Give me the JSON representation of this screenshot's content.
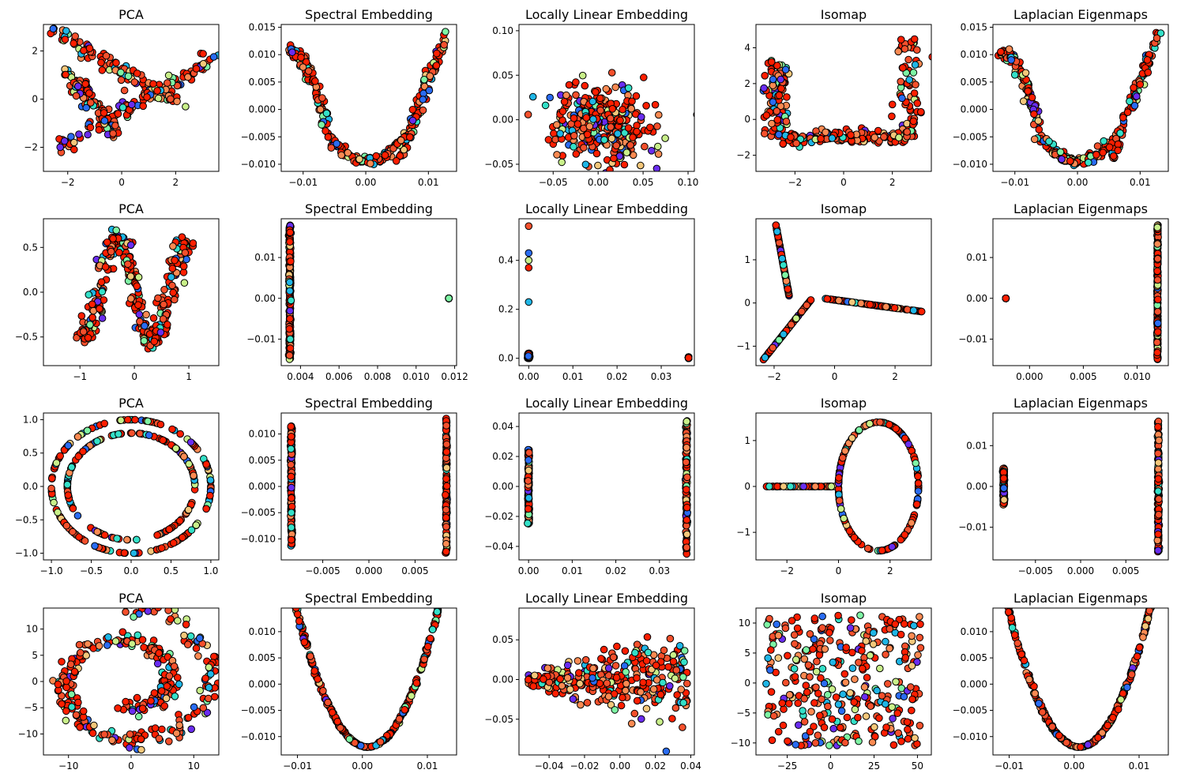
{
  "figure": {
    "rows": 4,
    "cols": 5,
    "colormap": "rainbow",
    "marker_edge": "#000000"
  },
  "palette": [
    "#6a2df0",
    "#2a6cf2",
    "#1fb6e6",
    "#34e0c8",
    "#7ef4a4",
    "#c9f08a",
    "#f4c77a",
    "#fb8a52",
    "#f4502c",
    "#ff1f00"
  ],
  "chart_data": [
    {
      "type": "scatter",
      "title": "PCA",
      "xlim": [
        -2.9,
        3.6
      ],
      "ylim": [
        -3.0,
        3.1
      ],
      "xticks": [
        -2,
        0,
        2
      ],
      "yticks": [
        -2,
        0,
        2
      ],
      "xtick_labels": [
        "−2",
        "0",
        "2"
      ],
      "ytick_labels": [
        "−2",
        "0",
        "2"
      ],
      "shape": "triangle-strands"
    },
    {
      "type": "scatter",
      "title": "Spectral Embedding",
      "xlim": [
        -0.0135,
        0.0145
      ],
      "ylim": [
        -0.0113,
        0.0155
      ],
      "xticks": [
        -0.01,
        0.0,
        0.01
      ],
      "yticks": [
        -0.01,
        -0.005,
        0.0,
        0.005,
        0.01,
        0.015
      ],
      "xtick_labels": [
        "−0.01",
        "0.00",
        "0.01"
      ],
      "ytick_labels": [
        "−0.010",
        "−0.005",
        "0.000",
        "0.005",
        "0.010",
        "0.015"
      ],
      "shape": "u-curve-wide"
    },
    {
      "type": "scatter",
      "title": "Locally Linear Embedding",
      "xlim": [
        -0.088,
        0.107
      ],
      "ylim": [
        -0.058,
        0.107
      ],
      "xticks": [
        -0.05,
        0.0,
        0.05,
        0.1
      ],
      "yticks": [
        -0.05,
        0.0,
        0.05,
        0.1
      ],
      "xtick_labels": [
        "−0.05",
        "0.00",
        "0.05",
        "0.10"
      ],
      "ytick_labels": [
        "−0.05",
        "0.00",
        "0.05",
        "0.10"
      ],
      "shape": "cloud"
    },
    {
      "type": "scatter",
      "title": "Isomap",
      "xlim": [
        -3.6,
        3.6
      ],
      "ylim": [
        -2.9,
        5.3
      ],
      "xticks": [
        -2,
        0,
        2
      ],
      "yticks": [
        -2,
        0,
        2,
        4
      ],
      "xtick_labels": [
        "−2",
        "0",
        "2"
      ],
      "ytick_labels": [
        "−2",
        "0",
        "2",
        "4"
      ],
      "shape": "bracket"
    },
    {
      "type": "scatter",
      "title": "Laplacian Eigenmaps",
      "xlim": [
        -0.0135,
        0.0145
      ],
      "ylim": [
        -0.0113,
        0.0155
      ],
      "xticks": [
        -0.01,
        0.0,
        0.01
      ],
      "yticks": [
        -0.01,
        -0.005,
        0.0,
        0.005,
        0.01,
        0.015
      ],
      "xtick_labels": [
        "−0.01",
        "0.00",
        "0.01"
      ],
      "ytick_labels": [
        "−0.010",
        "−0.005",
        "0.000",
        "0.005",
        "0.010",
        "0.015"
      ],
      "shape": "u-curve-wide"
    },
    {
      "type": "scatter",
      "title": "PCA",
      "xlim": [
        -1.67,
        1.55
      ],
      "ylim": [
        -0.82,
        0.82
      ],
      "xticks": [
        -1,
        0,
        1
      ],
      "yticks": [
        -0.5,
        0.0,
        0.5
      ],
      "xtick_labels": [
        "−1",
        "0",
        "1"
      ],
      "ytick_labels": [
        "−0.5",
        "0.0",
        "0.5"
      ],
      "shape": "s-curve-2d"
    },
    {
      "type": "scatter",
      "title": "Spectral Embedding",
      "xlim": [
        0.003,
        0.0121
      ],
      "ylim": [
        -0.0165,
        0.0195
      ],
      "xticks": [
        0.004,
        0.006,
        0.008,
        0.01,
        0.012
      ],
      "yticks": [
        -0.01,
        0.0,
        0.01
      ],
      "xtick_labels": [
        "0.004",
        "0.006",
        "0.008",
        "0.010",
        "0.012"
      ],
      "ytick_labels": [
        "−0.01",
        "0.00",
        "0.01"
      ],
      "shape": "column-left-dot-right",
      "col_x": 0.00345,
      "dot": [
        0.0117,
        0.0
      ]
    },
    {
      "type": "scatter",
      "title": "Locally Linear Embedding",
      "xlim": [
        -0.0022,
        0.0375
      ],
      "ylim": [
        -0.03,
        0.57
      ],
      "xticks": [
        0.0,
        0.01,
        0.02,
        0.03
      ],
      "yticks": [
        0.0,
        0.2,
        0.4
      ],
      "xtick_labels": [
        "0.00",
        "0.01",
        "0.02",
        "0.03"
      ],
      "ytick_labels": [
        "0.0",
        "0.2",
        "0.4"
      ],
      "shape": "lle-spikes"
    },
    {
      "type": "scatter",
      "title": "Isomap",
      "xlim": [
        -2.6,
        3.2
      ],
      "ylim": [
        -1.45,
        1.95
      ],
      "xticks": [
        -2,
        0,
        2
      ],
      "yticks": [
        -1,
        0,
        1
      ],
      "xtick_labels": [
        "−2",
        "0",
        "2"
      ],
      "ytick_labels": [
        "−1",
        "0",
        "1"
      ],
      "shape": "y-branches"
    },
    {
      "type": "scatter",
      "title": "Laplacian Eigenmaps",
      "xlim": [
        -0.0034,
        0.0129
      ],
      "ylim": [
        -0.0165,
        0.0195
      ],
      "xticks": [
        0.0,
        0.005,
        0.01
      ],
      "yticks": [
        -0.01,
        0.0,
        0.01
      ],
      "xtick_labels": [
        "0.000",
        "0.005",
        "0.010"
      ],
      "ytick_labels": [
        "−0.01",
        "0.00",
        "0.01"
      ],
      "shape": "dot-left-column-right",
      "col_x": 0.0119,
      "dot": [
        -0.0022,
        0.0
      ]
    },
    {
      "type": "scatter",
      "title": "PCA",
      "xlim": [
        -1.1,
        1.1
      ],
      "ylim": [
        -1.1,
        1.1
      ],
      "xticks": [
        -1.0,
        -0.5,
        0.0,
        0.5,
        1.0
      ],
      "yticks": [
        -1.0,
        -0.5,
        0.0,
        0.5,
        1.0
      ],
      "xtick_labels": [
        "−1.0",
        "−0.5",
        "0.0",
        "0.5",
        "1.0"
      ],
      "ytick_labels": [
        "−1.0",
        "−0.5",
        "0.0",
        "0.5",
        "1.0"
      ],
      "shape": "two-circles"
    },
    {
      "type": "scatter",
      "title": "Spectral Embedding",
      "xlim": [
        -0.0095,
        0.0095
      ],
      "ylim": [
        -0.014,
        0.014
      ],
      "xticks": [
        -0.005,
        0.0,
        0.005
      ],
      "yticks": [
        -0.01,
        -0.005,
        0.0,
        0.005,
        0.01
      ],
      "xtick_labels": [
        "−0.005",
        "0.000",
        "0.005"
      ],
      "ytick_labels": [
        "−0.010",
        "−0.005",
        "0.000",
        "0.005",
        "0.010"
      ],
      "shape": "two-columns",
      "col_a": [
        -0.0084,
        -0.0115,
        0.0115
      ],
      "col_b": [
        0.0084,
        -0.0128,
        0.013
      ]
    },
    {
      "type": "scatter",
      "title": "Locally Linear Embedding",
      "xlim": [
        -0.0022,
        0.038
      ],
      "ylim": [
        -0.049,
        0.049
      ],
      "xticks": [
        0.0,
        0.01,
        0.02,
        0.03
      ],
      "yticks": [
        -0.04,
        -0.02,
        0.0,
        0.02,
        0.04
      ],
      "xtick_labels": [
        "0.00",
        "0.01",
        "0.02",
        "0.03"
      ],
      "ytick_labels": [
        "−0.04",
        "−0.02",
        "0.00",
        "0.02",
        "0.04"
      ],
      "shape": "two-columns",
      "col_a": [
        0.0,
        -0.025,
        0.025
      ],
      "col_b": [
        0.0362,
        -0.045,
        0.045
      ]
    },
    {
      "type": "scatter",
      "title": "Isomap",
      "xlim": [
        -3.2,
        3.6
      ],
      "ylim": [
        -1.6,
        1.6
      ],
      "xticks": [
        -2,
        0,
        2
      ],
      "yticks": [
        -1,
        0,
        1
      ],
      "xtick_labels": [
        "−2",
        "0",
        "2"
      ],
      "ytick_labels": [
        "−1",
        "0",
        "1"
      ],
      "shape": "loop-tail"
    },
    {
      "type": "scatter",
      "title": "Laplacian Eigenmaps",
      "xlim": [
        -0.0097,
        0.0097
      ],
      "ylim": [
        -0.018,
        0.018
      ],
      "xticks": [
        -0.005,
        0.0,
        0.005
      ],
      "yticks": [
        -0.01,
        0.0,
        0.01
      ],
      "xtick_labels": [
        "−0.005",
        "0.000",
        "0.005"
      ],
      "ytick_labels": [
        "−0.01",
        "0.00",
        "0.01"
      ],
      "shape": "two-columns",
      "col_a": [
        -0.0085,
        -0.0045,
        0.0045
      ],
      "col_b": [
        0.0086,
        -0.016,
        0.016
      ]
    },
    {
      "type": "scatter",
      "title": "PCA",
      "xlim": [
        -14.0,
        14.0
      ],
      "ylim": [
        -14.0,
        14.0
      ],
      "xticks": [
        -10,
        0,
        10
      ],
      "yticks": [
        -10,
        -5,
        0,
        5,
        10
      ],
      "xtick_labels": [
        "−10",
        "0",
        "10"
      ],
      "ytick_labels": [
        "−10",
        "−5",
        "0",
        "5",
        "10"
      ],
      "shape": "swiss-roll"
    },
    {
      "type": "scatter",
      "title": "Spectral Embedding",
      "xlim": [
        -0.0125,
        0.0145
      ],
      "ylim": [
        -0.0135,
        0.0145
      ],
      "xticks": [
        -0.01,
        0.0,
        0.01
      ],
      "yticks": [
        -0.01,
        -0.005,
        0.0,
        0.005,
        0.01
      ],
      "xtick_labels": [
        "−0.01",
        "0.00",
        "0.01"
      ],
      "ytick_labels": [
        "−0.010",
        "−0.005",
        "0.000",
        "0.005",
        "0.010"
      ],
      "shape": "parabola"
    },
    {
      "type": "scatter",
      "title": "Locally Linear Embedding",
      "xlim": [
        -0.057,
        0.042
      ],
      "ylim": [
        -0.095,
        0.09
      ],
      "xticks": [
        -0.04,
        -0.02,
        0.0,
        0.02,
        0.04
      ],
      "yticks": [
        -0.05,
        0.0,
        0.05
      ],
      "xtick_labels": [
        "−0.04",
        "−0.02",
        "0.00",
        "0.02",
        "0.04"
      ],
      "ytick_labels": [
        "−0.05",
        "0.00",
        "0.05"
      ],
      "shape": "fan"
    },
    {
      "type": "scatter",
      "title": "Isomap",
      "xlim": [
        -43.0,
        58.0
      ],
      "ylim": [
        -12.0,
        12.5
      ],
      "xticks": [
        -25,
        0,
        25,
        50
      ],
      "yticks": [
        -10,
        -5,
        0,
        5,
        10
      ],
      "xtick_labels": [
        "−25",
        "0",
        "25",
        "50"
      ],
      "ytick_labels": [
        "−10",
        "−5",
        "0",
        "5",
        "10"
      ],
      "shape": "rect-cloud"
    },
    {
      "type": "scatter",
      "title": "Laplacian Eigenmaps",
      "xlim": [
        -0.0125,
        0.0145
      ],
      "ylim": [
        -0.0135,
        0.0145
      ],
      "xticks": [
        -0.01,
        0.0,
        0.01
      ],
      "yticks": [
        -0.01,
        -0.005,
        0.0,
        0.005,
        0.01
      ],
      "xtick_labels": [
        "−0.01",
        "0.00",
        "0.01"
      ],
      "ytick_labels": [
        "−0.010",
        "−0.005",
        "0.000",
        "0.005",
        "0.010"
      ],
      "shape": "parabola"
    }
  ]
}
